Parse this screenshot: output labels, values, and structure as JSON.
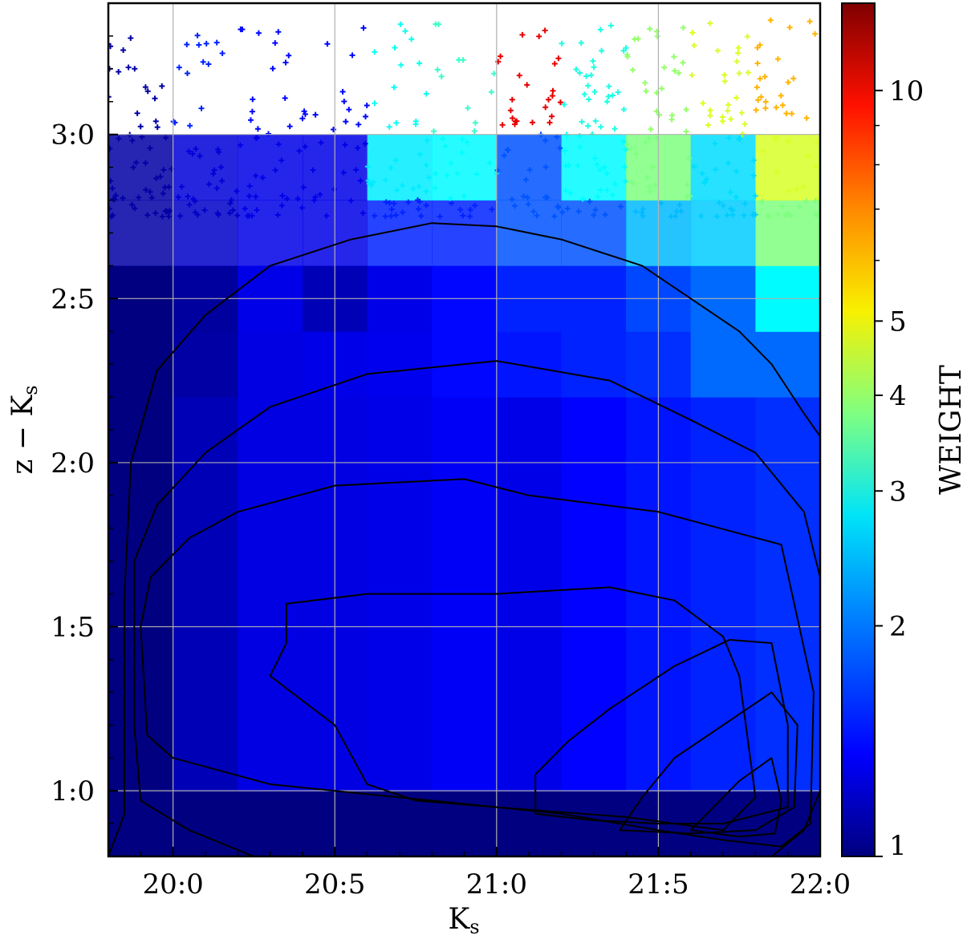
{
  "chart_data": {
    "type": "heatmap",
    "title": "",
    "xlabel": {
      "main": "K",
      "sub": "s"
    },
    "ylabel": {
      "main": "z − K",
      "sub": "s"
    },
    "colorbar_label": "WEIGHT",
    "xlim": [
      19.8,
      22.0
    ],
    "ylim": [
      0.8,
      3.4
    ],
    "x_ticks": [
      20.0,
      20.5,
      21.0,
      21.5,
      22.0
    ],
    "x_tick_labels": [
      "20:0",
      "20:5",
      "21:0",
      "21:5",
      "22:0"
    ],
    "y_ticks": [
      1.0,
      1.5,
      2.0,
      2.5,
      3.0
    ],
    "y_tick_labels": [
      "1:0",
      "1:5",
      "2:0",
      "2:5",
      "3:0"
    ],
    "grid": true,
    "colormap": "jet",
    "color_scale": "log",
    "colorbar_range": [
      1,
      13
    ],
    "colorbar_ticks": [
      1,
      2,
      3,
      4,
      5,
      10
    ],
    "colorbar_tick_labels": [
      "1",
      "2",
      "3",
      "4",
      "5",
      "10"
    ],
    "bin_x_edges": [
      19.8,
      20.0,
      20.2,
      20.4,
      20.6,
      20.8,
      21.0,
      21.2,
      21.4,
      21.6,
      21.8,
      22.0
    ],
    "bin_y_edges": [
      0.8,
      1.0,
      2.2,
      2.4,
      2.6,
      2.8,
      3.0,
      3.4
    ],
    "weights": [
      [
        1.0,
        1.0,
        1.0,
        1.0,
        1.0,
        1.0,
        1.0,
        1.0,
        1.0,
        1.0,
        1.0
      ],
      [
        1.0,
        1.15,
        1.28,
        1.28,
        1.3,
        1.35,
        1.3,
        1.38,
        1.45,
        1.5,
        1.55
      ],
      [
        1.0,
        1.1,
        1.28,
        1.3,
        1.32,
        1.4,
        1.45,
        1.5,
        1.55,
        1.8,
        1.8
      ],
      [
        1.0,
        1.08,
        1.3,
        1.15,
        1.3,
        1.4,
        1.5,
        1.5,
        1.65,
        1.8,
        2.6
      ],
      [
        1.1,
        1.2,
        1.3,
        1.3,
        1.5,
        1.5,
        1.7,
        1.7,
        2.2,
        2.3,
        3.6
      ],
      [
        1.1,
        1.25,
        1.3,
        1.3,
        2.5,
        2.6,
        1.7,
        2.6,
        3.6,
        2.4,
        4.5
      ],
      [
        1.1,
        1.5,
        1.4,
        1.4,
        2.7,
        3.0,
        10.0,
        2.8,
        3.8,
        4.5,
        6.0
      ]
    ],
    "contours": [
      {
        "points": [
          [
            19.8,
            0.8
          ],
          [
            19.85,
            0.93
          ],
          [
            19.85,
            1.1
          ],
          [
            19.85,
            1.6
          ],
          [
            19.87,
            2.0
          ],
          [
            19.95,
            2.28
          ],
          [
            20.1,
            2.45
          ],
          [
            20.3,
            2.6
          ],
          [
            20.55,
            2.68
          ],
          [
            20.8,
            2.73
          ],
          [
            21.0,
            2.72
          ],
          [
            21.2,
            2.68
          ],
          [
            21.45,
            2.6
          ],
          [
            21.6,
            2.5
          ],
          [
            21.75,
            2.4
          ],
          [
            21.85,
            2.3
          ],
          [
            21.95,
            2.15
          ],
          [
            22.0,
            2.08
          ]
        ]
      },
      {
        "points": [
          [
            20.25,
            0.8
          ],
          [
            20.05,
            0.88
          ],
          [
            19.9,
            0.97
          ],
          [
            19.88,
            1.2
          ],
          [
            19.88,
            1.7
          ],
          [
            19.95,
            1.87
          ],
          [
            20.1,
            2.03
          ],
          [
            20.3,
            2.17
          ],
          [
            20.6,
            2.27
          ],
          [
            21.0,
            2.31
          ],
          [
            21.35,
            2.25
          ],
          [
            21.6,
            2.13
          ],
          [
            21.8,
            2.03
          ],
          [
            21.95,
            1.85
          ],
          [
            22.0,
            1.65
          ],
          [
            22.0,
            1.0
          ],
          [
            21.95,
            0.88
          ],
          [
            21.85,
            0.8
          ]
        ]
      },
      {
        "points": [
          [
            19.9,
            1.5
          ],
          [
            19.92,
            1.17
          ],
          [
            20.0,
            1.1
          ],
          [
            20.3,
            1.02
          ],
          [
            20.8,
            0.97
          ],
          [
            21.2,
            0.93
          ],
          [
            21.5,
            0.88
          ],
          [
            21.7,
            0.85
          ],
          [
            21.88,
            0.83
          ],
          [
            21.97,
            0.9
          ],
          [
            21.98,
            1.3
          ],
          [
            21.88,
            1.75
          ],
          [
            21.5,
            1.85
          ],
          [
            21.1,
            1.9
          ],
          [
            20.9,
            1.95
          ],
          [
            20.5,
            1.93
          ],
          [
            20.2,
            1.85
          ],
          [
            20.05,
            1.77
          ],
          [
            19.93,
            1.65
          ],
          [
            19.9,
            1.5
          ]
        ]
      },
      {
        "points": [
          [
            20.35,
            1.45
          ],
          [
            20.35,
            1.57
          ],
          [
            20.6,
            1.6
          ],
          [
            21.0,
            1.6
          ],
          [
            21.35,
            1.62
          ],
          [
            21.55,
            1.58
          ],
          [
            21.7,
            1.47
          ],
          [
            21.75,
            1.35
          ],
          [
            21.8,
            0.98
          ],
          [
            21.7,
            0.88
          ],
          [
            21.4,
            0.92
          ],
          [
            21.0,
            0.95
          ],
          [
            20.75,
            0.97
          ],
          [
            20.6,
            1.02
          ],
          [
            20.5,
            1.2
          ],
          [
            20.3,
            1.35
          ],
          [
            20.35,
            1.45
          ]
        ]
      },
      {
        "points": [
          [
            21.12,
            0.93
          ],
          [
            21.12,
            1.05
          ],
          [
            21.22,
            1.15
          ],
          [
            21.35,
            1.25
          ],
          [
            21.55,
            1.38
          ],
          [
            21.72,
            1.46
          ],
          [
            21.85,
            1.45
          ],
          [
            21.9,
            1.2
          ],
          [
            21.9,
            0.95
          ],
          [
            21.7,
            0.9
          ],
          [
            21.5,
            0.9
          ],
          [
            21.3,
            0.91
          ],
          [
            21.12,
            0.93
          ]
        ]
      },
      {
        "points": [
          [
            21.38,
            0.88
          ],
          [
            21.45,
            0.98
          ],
          [
            21.55,
            1.1
          ],
          [
            21.7,
            1.2
          ],
          [
            21.85,
            1.3
          ],
          [
            21.93,
            1.2
          ],
          [
            21.92,
            0.95
          ],
          [
            21.8,
            0.88
          ],
          [
            21.6,
            0.87
          ],
          [
            21.38,
            0.88
          ]
        ]
      },
      {
        "points": [
          [
            21.6,
            0.88
          ],
          [
            21.67,
            0.95
          ],
          [
            21.75,
            1.03
          ],
          [
            21.85,
            1.1
          ],
          [
            21.88,
            0.97
          ],
          [
            21.86,
            0.87
          ],
          [
            21.75,
            0.86
          ],
          [
            21.6,
            0.88
          ]
        ]
      }
    ]
  }
}
